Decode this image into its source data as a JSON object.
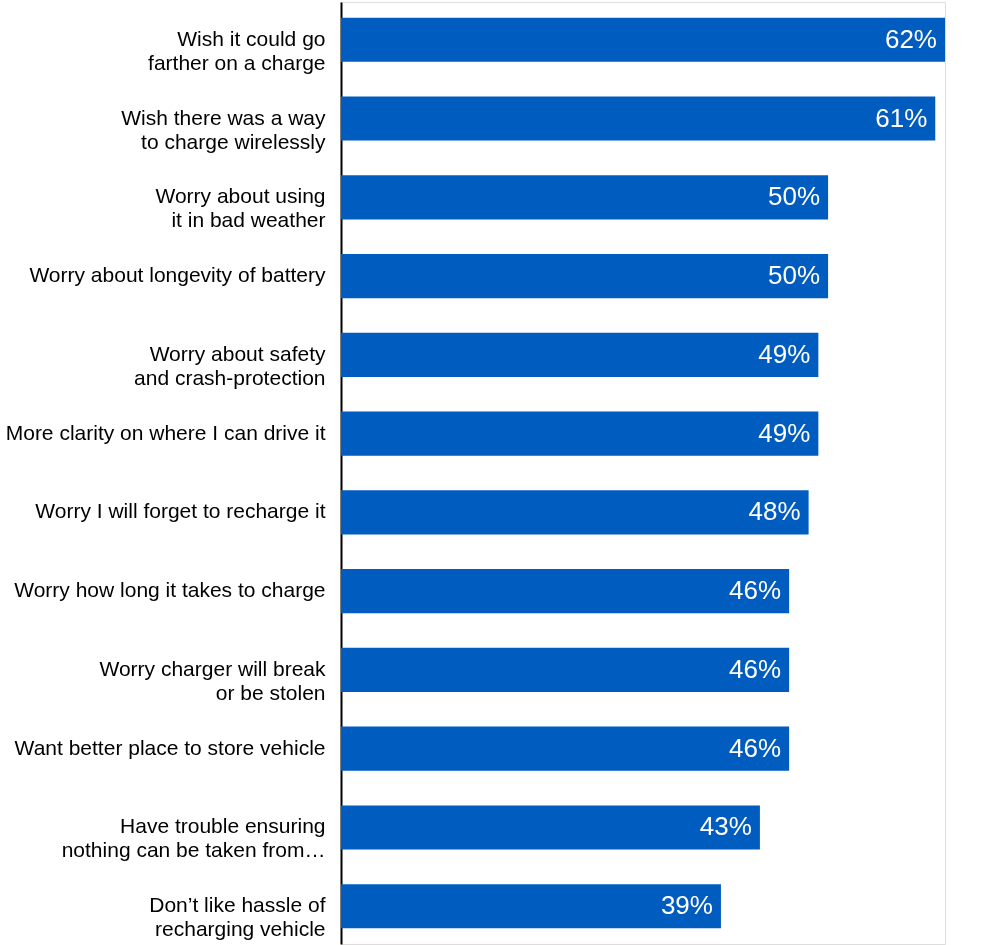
{
  "chart_data": {
    "type": "bar",
    "orientation": "horizontal",
    "value_labels": [
      "62%",
      "61%",
      "50%",
      "50%",
      "49%",
      "49%",
      "48%",
      "46%",
      "46%",
      "46%",
      "43%",
      "39%"
    ],
    "categories": [
      "Wish it could go\nfarther on a charge",
      "Wish there was a way\nto charge wirelessly",
      "Worry about using\nit in bad weather",
      "Worry about longevity of battery",
      "Worry about safety\nand crash-protection",
      "More clarity on where I can drive it",
      "Worry I will forget to recharge it",
      "Worry how long it takes to charge",
      "Worry charger will break\nor be stolen",
      "Want better place to store vehicle",
      "Have trouble ensuring\nnothing can be taken from…",
      "Don’t like hassle of\nrecharging vehicle"
    ],
    "values": [
      62,
      61,
      50,
      50,
      49,
      49,
      48,
      46,
      46,
      46,
      43,
      39
    ],
    "color": "#005cbf"
  }
}
